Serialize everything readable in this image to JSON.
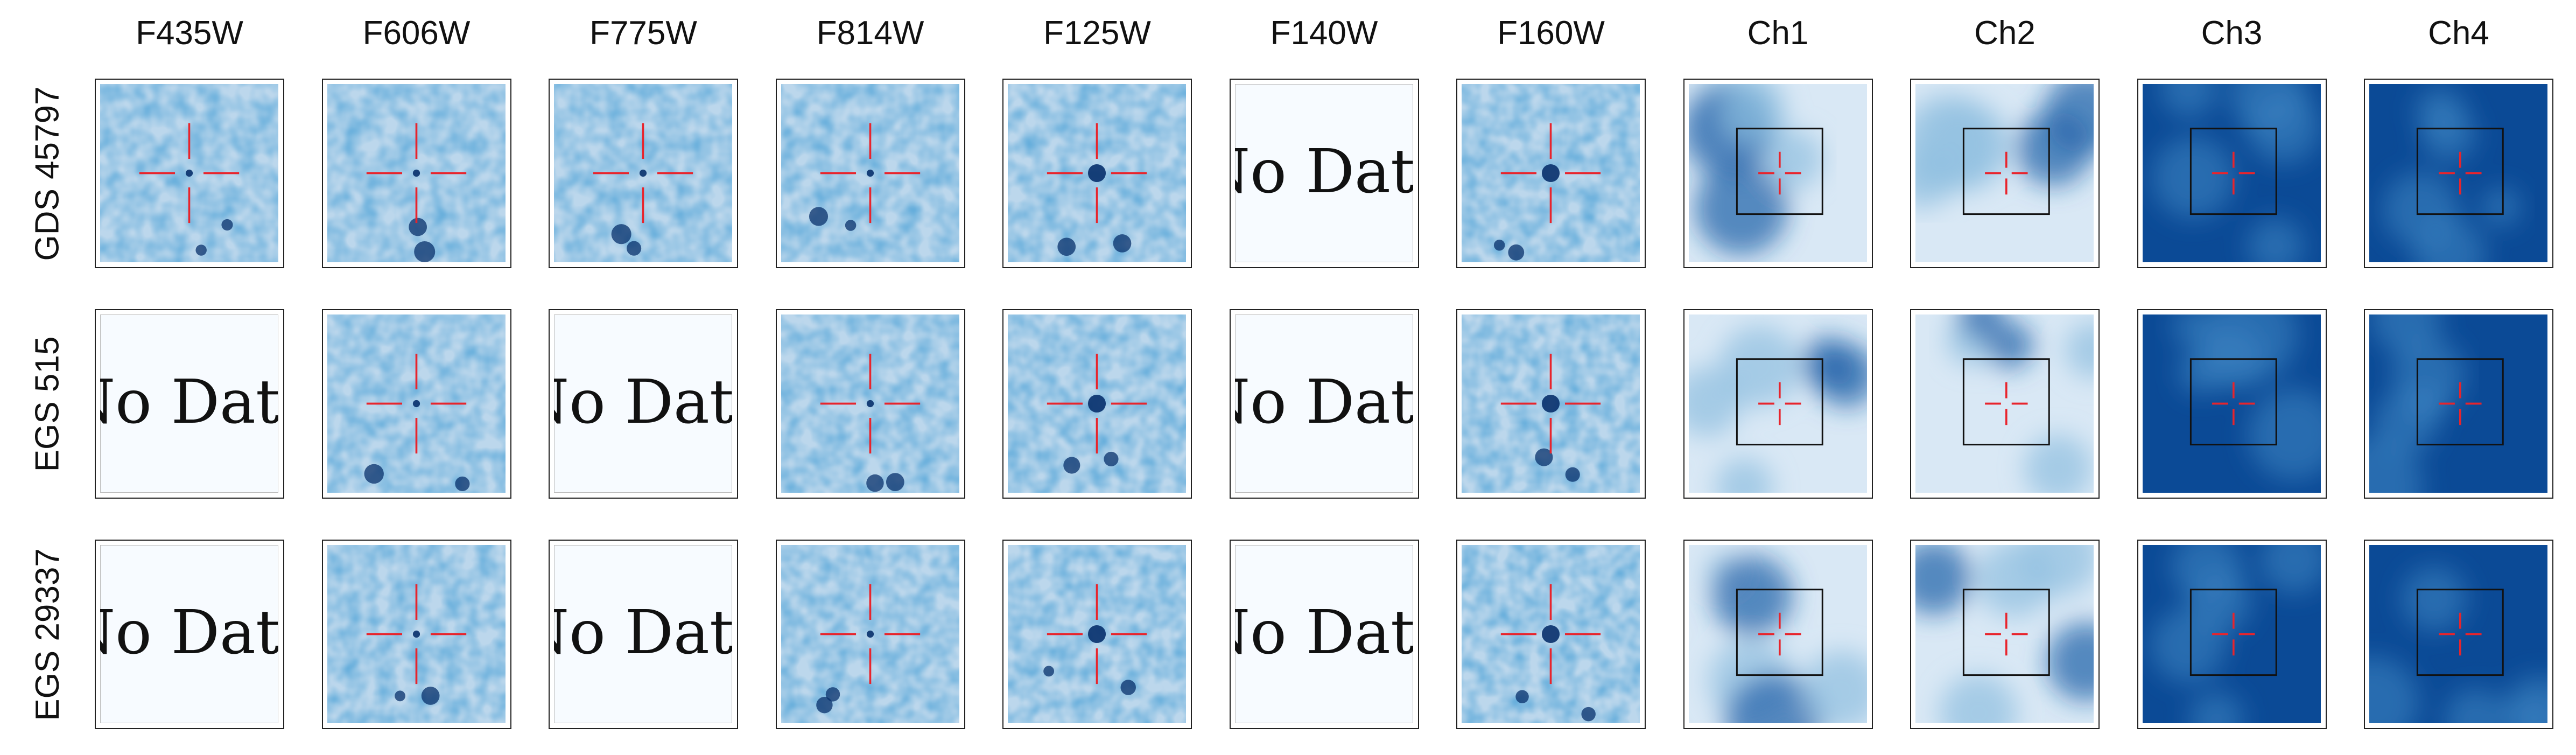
{
  "columns": [
    "F435W",
    "F606W",
    "F775W",
    "F814W",
    "F125W",
    "F140W",
    "F160W",
    "Ch1",
    "Ch2",
    "Ch3",
    "Ch4"
  ],
  "no_data_label": "No Data",
  "colormap": {
    "light": "#f7fbff",
    "mid": "#6baed6",
    "dark": "#08306b",
    "crosshair": "#e8242c",
    "frame": "#222222"
  },
  "rows": [
    {
      "label": "GDS 45797",
      "cells": [
        {
          "band": "F435W",
          "kind": "hst",
          "available": true
        },
        {
          "band": "F606W",
          "kind": "hst",
          "available": true
        },
        {
          "band": "F775W",
          "kind": "hst",
          "available": true
        },
        {
          "band": "F814W",
          "kind": "hst",
          "available": true
        },
        {
          "band": "F125W",
          "kind": "hst",
          "available": true
        },
        {
          "band": "F140W",
          "kind": "hst",
          "available": false
        },
        {
          "band": "F160W",
          "kind": "hst",
          "available": true
        },
        {
          "band": "Ch1",
          "kind": "irac",
          "available": true
        },
        {
          "band": "Ch2",
          "kind": "irac",
          "available": true
        },
        {
          "band": "Ch3",
          "kind": "irac",
          "available": true
        },
        {
          "band": "Ch4",
          "kind": "irac",
          "available": true
        }
      ]
    },
    {
      "label": "EGS 515",
      "cells": [
        {
          "band": "F435W",
          "kind": "hst",
          "available": false
        },
        {
          "band": "F606W",
          "kind": "hst",
          "available": true
        },
        {
          "band": "F775W",
          "kind": "hst",
          "available": false
        },
        {
          "band": "F814W",
          "kind": "hst",
          "available": true
        },
        {
          "band": "F125W",
          "kind": "hst",
          "available": true
        },
        {
          "band": "F140W",
          "kind": "hst",
          "available": false
        },
        {
          "band": "F160W",
          "kind": "hst",
          "available": true
        },
        {
          "band": "Ch1",
          "kind": "irac",
          "available": true
        },
        {
          "band": "Ch2",
          "kind": "irac",
          "available": true
        },
        {
          "band": "Ch3",
          "kind": "irac",
          "available": true
        },
        {
          "band": "Ch4",
          "kind": "irac",
          "available": true
        }
      ]
    },
    {
      "label": "EGS 29337",
      "cells": [
        {
          "band": "F435W",
          "kind": "hst",
          "available": false
        },
        {
          "band": "F606W",
          "kind": "hst",
          "available": true
        },
        {
          "band": "F775W",
          "kind": "hst",
          "available": false
        },
        {
          "band": "F814W",
          "kind": "hst",
          "available": true
        },
        {
          "band": "F125W",
          "kind": "hst",
          "available": true
        },
        {
          "band": "F140W",
          "kind": "hst",
          "available": false
        },
        {
          "band": "F160W",
          "kind": "hst",
          "available": true
        },
        {
          "band": "Ch1",
          "kind": "irac",
          "available": true
        },
        {
          "band": "Ch2",
          "kind": "irac",
          "available": true
        },
        {
          "band": "Ch3",
          "kind": "irac",
          "available": true
        },
        {
          "band": "Ch4",
          "kind": "irac",
          "available": true
        }
      ]
    }
  ]
}
